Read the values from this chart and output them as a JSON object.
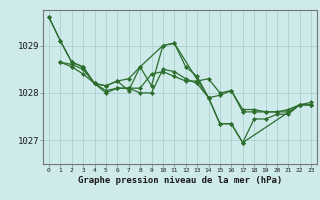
{
  "background_color": "#ceeaea",
  "grid_color": "#b0d4d4",
  "line_color": "#2d6e2d",
  "marker_color": "#2d6e2d",
  "title": "Graphe pression niveau de la mer (hPa)",
  "xlim": [
    -0.5,
    23.5
  ],
  "ylim": [
    1026.5,
    1029.75
  ],
  "yticks": [
    1027,
    1028,
    1029
  ],
  "xticks": [
    0,
    1,
    2,
    3,
    4,
    5,
    6,
    7,
    8,
    9,
    10,
    11,
    12,
    13,
    14,
    15,
    16,
    17,
    18,
    19,
    20,
    21,
    22,
    23
  ],
  "series": [
    {
      "x": [
        0,
        1,
        2,
        3,
        4,
        5,
        6,
        7,
        8,
        9,
        10,
        11,
        12,
        13,
        14,
        15,
        16,
        17,
        18,
        19,
        20,
        21,
        22,
        23
      ],
      "y": [
        1029.6,
        1029.1,
        1028.65,
        1028.55,
        1028.2,
        1028.15,
        1028.25,
        1028.05,
        1028.55,
        1028.15,
        1029.0,
        1029.05,
        1028.55,
        1028.35,
        1027.9,
        1027.35,
        1027.35,
        1026.95,
        1027.45,
        1027.45,
        1027.55,
        1027.55,
        1027.75,
        1027.75
      ]
    },
    {
      "x": [
        1,
        2,
        3,
        4,
        5,
        6,
        7,
        8,
        9,
        10,
        11,
        12,
        13,
        14,
        15,
        16,
        17,
        18,
        19,
        20,
        21,
        22,
        23
      ],
      "y": [
        1028.65,
        1028.6,
        1028.5,
        1028.2,
        1028.0,
        1028.1,
        1028.1,
        1028.0,
        1028.0,
        1028.5,
        1028.45,
        1028.3,
        1028.2,
        1027.9,
        1027.95,
        1028.05,
        1027.6,
        1027.6,
        1027.6,
        1027.6,
        1027.6,
        1027.75,
        1027.75
      ]
    },
    {
      "x": [
        1,
        2,
        3,
        4,
        5,
        6,
        7,
        8,
        9,
        10,
        11,
        12,
        13,
        14,
        15,
        16,
        17,
        18,
        19,
        20,
        21,
        22,
        23
      ],
      "y": [
        1028.65,
        1028.55,
        1028.4,
        1028.2,
        1028.05,
        1028.1,
        1028.1,
        1028.1,
        1028.4,
        1028.45,
        1028.35,
        1028.25,
        1028.25,
        1028.3,
        1028.0,
        1028.05,
        1027.65,
        1027.65,
        1027.6,
        1027.6,
        1027.65,
        1027.75,
        1027.8
      ]
    },
    {
      "x": [
        0,
        1,
        2,
        3,
        4,
        5,
        6,
        7,
        8,
        10,
        11,
        14,
        15,
        16,
        17,
        22,
        23
      ],
      "y": [
        1029.6,
        1029.1,
        1028.65,
        1028.55,
        1028.2,
        1028.15,
        1028.25,
        1028.3,
        1028.55,
        1029.0,
        1029.05,
        1027.9,
        1027.35,
        1027.35,
        1026.95,
        1027.75,
        1027.75
      ]
    }
  ]
}
